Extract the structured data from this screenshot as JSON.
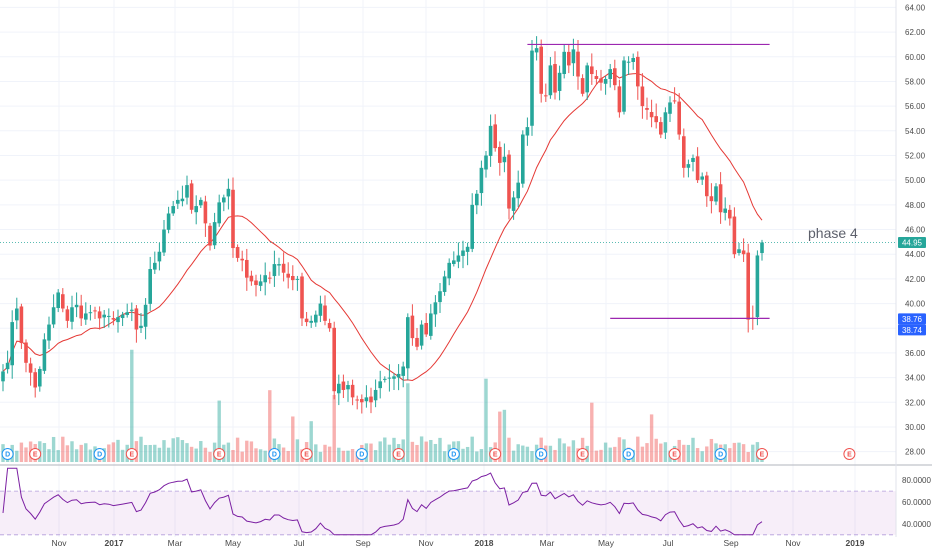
{
  "chart_data": {
    "type": "candlestick",
    "price_axis": {
      "ylim": [
        27,
        64.6
      ],
      "tick_labels": [
        "28.00",
        "30.00",
        "32.00",
        "34.00",
        "36.00",
        "38.00",
        "40.00",
        "42.00",
        "44.00",
        "46.00",
        "48.00",
        "50.00",
        "52.00",
        "54.00",
        "56.00",
        "58.00",
        "60.00",
        "62.00",
        "64.00"
      ]
    },
    "rsi_axis": {
      "ylim": [
        28,
        93
      ],
      "tick_labels": [
        "40.0000",
        "60.0000",
        "80.0000"
      ],
      "band_upper": 70,
      "band_lower": 30
    },
    "x_axis": {
      "tick_labels": [
        "Nov",
        "2017",
        "Mar",
        "May",
        "Jul",
        "Sep",
        "Nov",
        "2018",
        "Mar",
        "May",
        "Jul",
        "Sep",
        "Nov",
        "2019"
      ],
      "bold_labels": [
        "2017",
        "2018",
        "2019"
      ]
    },
    "price_badges": [
      {
        "value": 44.95,
        "text": "44.95",
        "color": "#26a69a"
      },
      {
        "value": 38.76,
        "text": "38.76",
        "color": "#2962ff"
      },
      {
        "value": 38.74,
        "text": "38.74",
        "color": "#2962ff"
      }
    ],
    "annotation": {
      "text": "phase 4"
    },
    "horizontal_lines": [
      {
        "level": 61.0,
        "start_index": 114,
        "end_index": 166
      },
      {
        "level": 38.8,
        "start_index": 132,
        "end_index": 166
      }
    ],
    "last_price": 44.95,
    "markers": [
      {
        "index": 1,
        "letter": "D"
      },
      {
        "index": 7,
        "letter": "E"
      },
      {
        "index": 21,
        "letter": "D"
      },
      {
        "index": 28,
        "letter": "E"
      },
      {
        "index": 47,
        "letter": "E"
      },
      {
        "index": 59,
        "letter": "D"
      },
      {
        "index": 66,
        "letter": "E"
      },
      {
        "index": 78,
        "letter": "D"
      },
      {
        "index": 86,
        "letter": "E"
      },
      {
        "index": 98,
        "letter": "D"
      },
      {
        "index": 107,
        "letter": "E"
      },
      {
        "index": 117,
        "letter": "D"
      },
      {
        "index": 126,
        "letter": "E"
      },
      {
        "index": 136,
        "letter": "D"
      },
      {
        "index": 146,
        "letter": "E"
      },
      {
        "index": 156,
        "letter": "D"
      },
      {
        "index": 165,
        "letter": "E"
      },
      {
        "index": 184,
        "letter": "E"
      }
    ],
    "series": [
      {
        "name": "price",
        "close": [
          34.5,
          35.2,
          38.5,
          39.6,
          36.8,
          35.2,
          34.4,
          33.2,
          34.7,
          37.1,
          38.3,
          39.7,
          40.9,
          39.6,
          38.6,
          39.7,
          39.9,
          38.8,
          39.2,
          39.3,
          39.4,
          38.8,
          39.1,
          39.0,
          38.7,
          38.9,
          39.1,
          39.3,
          39.5,
          37.9,
          38.2,
          39.9,
          42.8,
          43.3,
          44.2,
          46.0,
          47.3,
          47.9,
          48.4,
          48.5,
          49.6,
          47.6,
          47.9,
          48.4,
          46.5,
          44.7,
          46.6,
          48.2,
          48.6,
          49.3,
          44.5,
          43.7,
          43.5,
          42.1,
          41.8,
          41.5,
          41.8,
          42.3,
          42.1,
          43.2,
          43.2,
          42.5,
          42.1,
          41.9,
          42.0,
          38.8,
          38.5,
          38.6,
          39.1,
          40.0,
          38.6,
          38.0,
          32.9,
          33.5,
          33.0,
          33.4,
          32.4,
          32.2,
          32.0,
          32.4,
          32.0,
          33.0,
          33.7,
          33.9,
          34.0,
          34.1,
          34.3,
          34.9,
          38.9,
          37.2,
          36.5,
          38.3,
          37.5,
          39.2,
          40.1,
          41.0,
          42.2,
          43.3,
          43.5,
          43.9,
          44.3,
          44.6,
          48.0,
          48.9,
          51.0,
          52.0,
          54.4,
          52.6,
          51.4,
          51.9,
          47.7,
          48.6,
          49.8,
          53.7,
          54.3,
          60.5,
          60.7,
          57.0,
          56.8,
          59.3,
          57.1,
          58.7,
          60.4,
          59.3,
          60.6,
          58.4,
          57.0,
          59.3,
          58.6,
          58.2,
          57.9,
          58.2,
          59.0,
          57.7,
          55.5,
          59.7,
          59.6,
          59.9,
          57.6,
          56.0,
          55.7,
          55.1,
          54.7,
          53.7,
          55.5,
          56.3,
          56.4,
          53.7,
          51.0,
          51.3,
          51.8,
          50.0,
          50.3,
          48.7,
          48.3,
          49.5,
          47.4,
          47.7,
          46.9,
          44.0,
          44.4,
          44.0,
          38.7,
          38.8,
          43.9,
          44.95
        ]
      }
    ]
  }
}
